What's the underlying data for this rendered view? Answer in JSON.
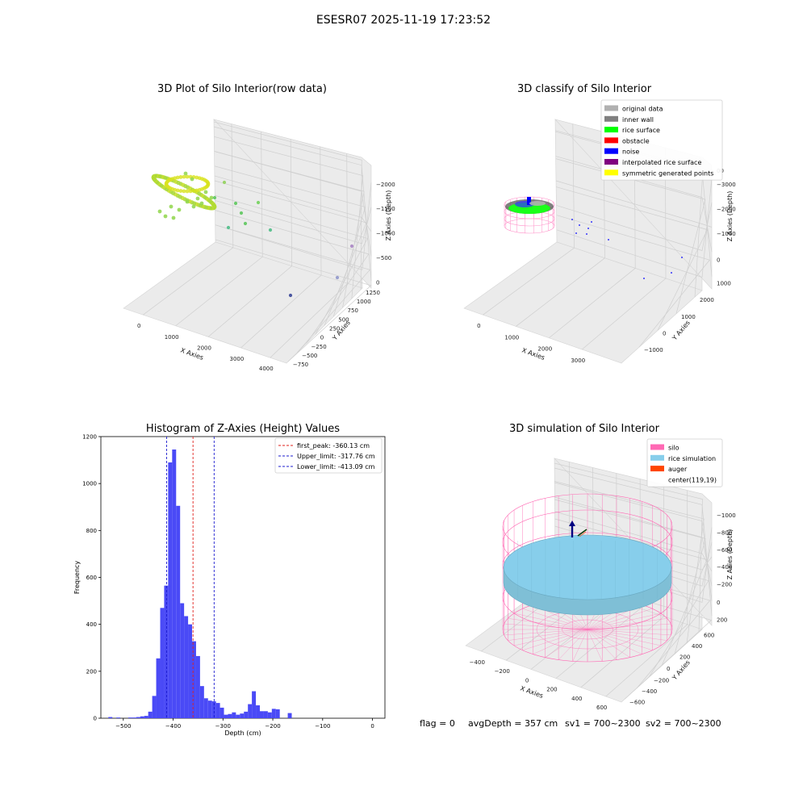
{
  "figure_title": "ESESR07 2025-11-19 17:23:52",
  "footer": {
    "flag": "flag = 0",
    "avg_depth": "avgDepth = 357 cm",
    "sv1": "sv1 = 700~2300",
    "sv2": "sv2 = 700~2300"
  },
  "colors": {
    "hist_bar": "#4a4af6",
    "first_peak": "#e0201c",
    "limits": "#1c1ccf",
    "pane": "#ebebeb",
    "grid": "#cfcfcf",
    "silo": "#ff69b4",
    "rice_simulation": "#87ceeb",
    "auger": "#ff4500"
  },
  "chart_data": [
    {
      "type": "scatter",
      "title": "3D Plot of Silo Interior(row data)",
      "xlabel": "X Axies",
      "ylabel": "Y Axies",
      "zlabel": "Z Axies (Depth)",
      "x_ticks": [
        "0",
        "1000",
        "2000",
        "3000",
        "4000"
      ],
      "y_ticks": [
        "−750",
        "−500",
        "−250",
        "0",
        "250",
        "500",
        "750",
        "1000",
        "1250"
      ],
      "z_ticks": [
        "0",
        "−500",
        "−1000",
        "−1500",
        "−2000"
      ],
      "outlier_points": [
        {
          "x": 1900,
          "y": 900,
          "z": -700
        },
        {
          "x": 2200,
          "y": 800,
          "z": -900
        },
        {
          "x": 2500,
          "y": 750,
          "z": -1000
        },
        {
          "x": 2800,
          "y": 650,
          "z": -1100
        },
        {
          "x": 3100,
          "y": 600,
          "z": -1300
        },
        {
          "x": 4000,
          "y": 1100,
          "z": -2050
        },
        {
          "x": 3900,
          "y": 800,
          "z": -1900
        },
        {
          "x": 3700,
          "y": 100,
          "z": -1900
        }
      ]
    },
    {
      "type": "scatter",
      "title": "3D classify of Silo Interior",
      "xlabel": "X Axies",
      "ylabel": "Y Axies",
      "zlabel": "Z Axies (Depth)",
      "x_ticks": [
        "0",
        "1000",
        "2000",
        "3000"
      ],
      "y_ticks": [
        "−1000",
        "0",
        "1000",
        "2000"
      ],
      "z_ticks": [
        "1000",
        "0",
        "−1000",
        "−2000",
        "−3000"
      ],
      "z_partial_tick": "00",
      "legend": [
        {
          "label": "original data",
          "color": "#b0b0b0"
        },
        {
          "label": "inner wall",
          "color": "#808080"
        },
        {
          "label": "rice surface",
          "color": "#00ff00"
        },
        {
          "label": "obstacle",
          "color": "#ff0000"
        },
        {
          "label": "noise",
          "color": "#0000ff"
        },
        {
          "label": "interpolated rice surface",
          "color": "#800080"
        },
        {
          "label": "symmetric generated points",
          "color": "#ffff00"
        }
      ]
    },
    {
      "type": "bar",
      "title": "Histogram of Z-Axies (Height) Values",
      "xlabel": "Depth (cm)",
      "ylabel": "Frequency",
      "xlim": [
        -545,
        25
      ],
      "ylim": [
        0,
        1200
      ],
      "x_ticks": [
        "−500",
        "−400",
        "−300",
        "−200",
        "−100",
        "0"
      ],
      "y_ticks": [
        "0",
        "200",
        "400",
        "600",
        "800",
        "1000",
        "1200"
      ],
      "bin_start": -530,
      "bin_width": 8,
      "counts": [
        5,
        0,
        3,
        0,
        0,
        3,
        3,
        5,
        8,
        10,
        28,
        95,
        255,
        470,
        565,
        1090,
        1145,
        905,
        490,
        435,
        400,
        328,
        265,
        137,
        85,
        75,
        72,
        65,
        45,
        15,
        18,
        25,
        15,
        20,
        28,
        60,
        115,
        55,
        30,
        30,
        25,
        40,
        38,
        0,
        0,
        22
      ],
      "lines": [
        {
          "label": "first_peak: -360.13 cm",
          "value": -360.13,
          "color": "#e0201c"
        },
        {
          "label": "Upper_limit: -317.76 cm",
          "value": -317.76,
          "color": "#1c1ccf"
        },
        {
          "label": "Lower_limit: -413.09 cm",
          "value": -413.09,
          "color": "#1c1ccf"
        }
      ]
    },
    {
      "type": "other",
      "title": "3D simulation of Silo Interior",
      "xlabel": "X Axies",
      "ylabel": "Y Axies",
      "zlabel": "Z Axies (Depth)",
      "x_ticks": [
        "−400",
        "−200",
        "0",
        "200",
        "400",
        "600"
      ],
      "y_ticks": [
        "−600",
        "−400",
        "−200",
        "0",
        "200",
        "400",
        "600"
      ],
      "z_ticks": [
        "200",
        "0",
        "−200",
        "−400",
        "−600",
        "−800",
        "−1000"
      ],
      "legend": [
        {
          "label": "silo",
          "color": "#ff69b4"
        },
        {
          "label": "rice simulation",
          "color": "#87ceeb"
        },
        {
          "label": "auger",
          "color": "#ff4500"
        },
        {
          "label": "center(119,19)",
          "color": ""
        }
      ]
    }
  ]
}
